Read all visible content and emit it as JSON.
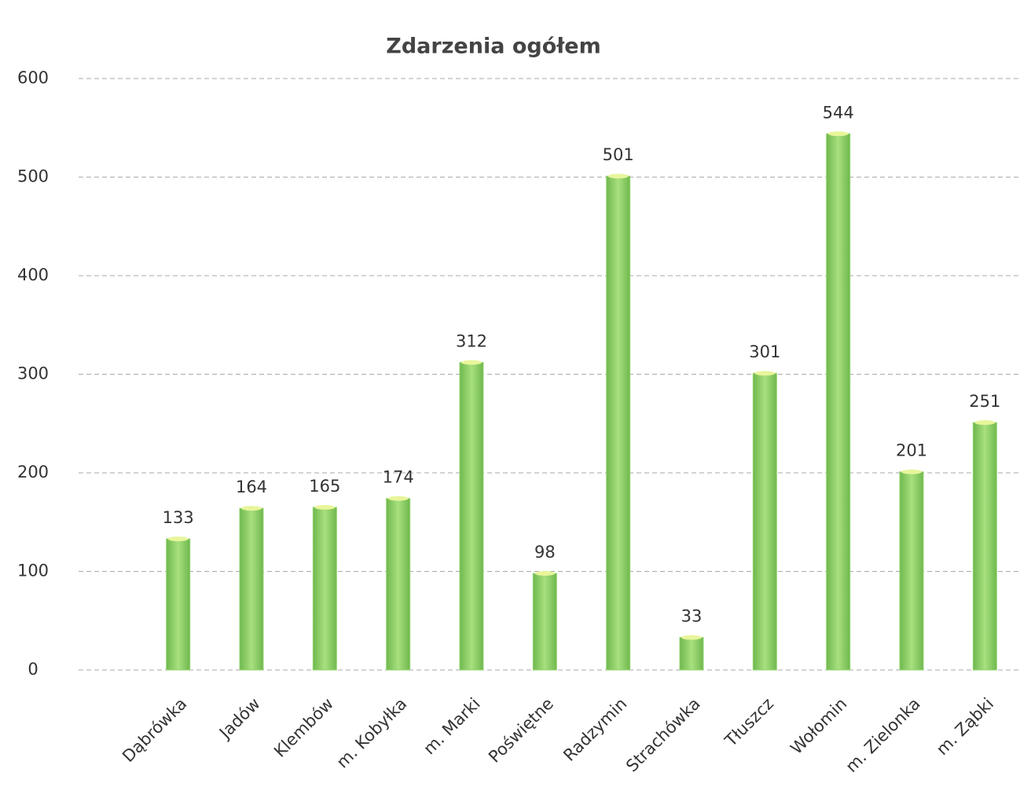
{
  "chart_data": {
    "type": "bar",
    "title": "Zdarzenia ogółem",
    "categories": [
      "Dąbrówka",
      "Jadów",
      "Klembów",
      "m. Kobyłka",
      "m. Marki",
      "Poświętne",
      "Radzymin",
      "Strachówka",
      "Tłuszcz",
      "Wołomin",
      "m. Zielonka",
      "m. Ząbki"
    ],
    "values": [
      133,
      164,
      165,
      174,
      312,
      98,
      501,
      33,
      301,
      544,
      201,
      251
    ],
    "color": "#92d36e",
    "ylim": [
      0,
      600
    ],
    "yticks": [
      0,
      100,
      200,
      300,
      400,
      500,
      600
    ],
    "grid": true
  }
}
